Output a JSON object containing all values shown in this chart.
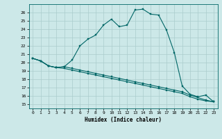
{
  "xlabel": "Humidex (Indice chaleur)",
  "bg_color": "#cce8e8",
  "grid_color": "#aacccc",
  "line_color": "#006666",
  "xlim": [
    -0.5,
    23.5
  ],
  "ylim": [
    14.5,
    27.0
  ],
  "yticks": [
    15,
    16,
    17,
    18,
    19,
    20,
    21,
    22,
    23,
    24,
    25,
    26
  ],
  "xticks": [
    0,
    1,
    2,
    3,
    4,
    5,
    6,
    7,
    8,
    9,
    10,
    11,
    12,
    13,
    14,
    15,
    16,
    17,
    18,
    19,
    20,
    21,
    22,
    23
  ],
  "curve1_x": [
    0,
    1,
    2,
    3,
    4,
    5,
    6,
    7,
    8,
    9,
    10,
    11,
    12,
    13,
    14,
    15,
    16,
    17,
    18,
    19,
    20,
    21,
    22,
    23
  ],
  "curve1_y": [
    20.5,
    20.2,
    19.6,
    19.4,
    19.5,
    20.3,
    22.0,
    22.8,
    23.3,
    24.5,
    25.2,
    24.3,
    24.5,
    26.3,
    26.4,
    25.8,
    25.7,
    23.9,
    21.2,
    17.2,
    16.2,
    15.9,
    16.1,
    15.3
  ],
  "curve2_x": [
    0,
    1,
    2,
    3,
    4,
    5,
    6,
    7,
    8,
    9,
    10,
    11,
    12,
    13,
    14,
    15,
    16,
    17,
    18,
    19,
    20,
    21,
    22,
    23
  ],
  "curve2_y": [
    20.5,
    20.2,
    19.6,
    19.4,
    19.5,
    19.3,
    19.1,
    18.9,
    18.7,
    18.5,
    18.3,
    18.1,
    17.9,
    17.7,
    17.5,
    17.3,
    17.1,
    16.9,
    16.7,
    16.5,
    16.1,
    15.8,
    15.5,
    15.3
  ],
  "curve3_x": [
    0,
    1,
    2,
    3,
    4,
    5,
    6,
    7,
    8,
    9,
    10,
    11,
    12,
    13,
    14,
    15,
    16,
    17,
    18,
    19,
    20,
    21,
    22,
    23
  ],
  "curve3_y": [
    20.5,
    20.2,
    19.6,
    19.4,
    19.3,
    19.1,
    18.9,
    18.7,
    18.5,
    18.3,
    18.1,
    17.9,
    17.7,
    17.5,
    17.3,
    17.1,
    16.9,
    16.7,
    16.5,
    16.3,
    15.9,
    15.6,
    15.4,
    15.3
  ]
}
